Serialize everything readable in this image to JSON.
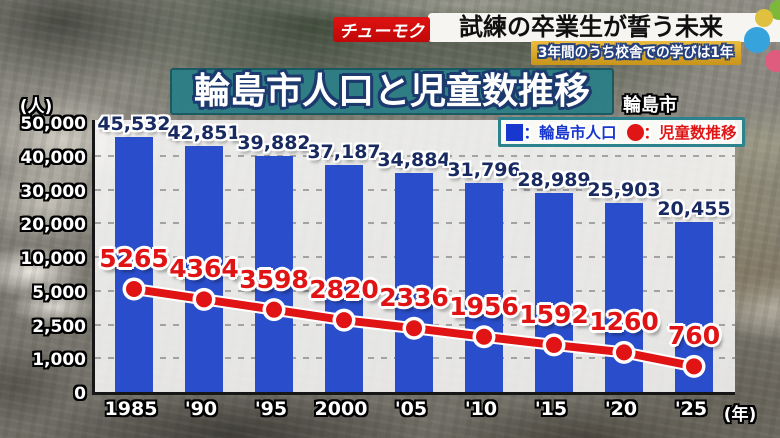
{
  "header": {
    "badge": "チューモク",
    "headline": "試練の卒業生が誓う未来",
    "subheadline": "3年間のうち校舎での学びは1年"
  },
  "title": "輪島市人口と児童数推移",
  "location_label": "輪島市",
  "legend": {
    "population_label": "：輪島市人口",
    "children_label": "：児童数推移"
  },
  "colors": {
    "bar": "#2a4ecb",
    "line": "#e01414",
    "legend_border": "#2c828d",
    "title_bg": "#2b7e86",
    "badge_bg": "#d20b0b",
    "subheadline_bg": "#d9a52c"
  },
  "chart_data": {
    "type": "bar+line",
    "title": "輪島市人口と児童数推移",
    "categories": [
      "1985",
      "'90",
      "'95",
      "2000",
      "'05",
      "'10",
      "'15",
      "'20",
      "'25"
    ],
    "series": [
      {
        "name": "輪島市人口",
        "type": "bar",
        "values": [
          45532,
          42851,
          39882,
          37187,
          34884,
          31796,
          28989,
          25903,
          20455
        ]
      },
      {
        "name": "児童数推移",
        "type": "line",
        "values": [
          5265,
          4364,
          3598,
          2820,
          2336,
          1956,
          1592,
          1260,
          760
        ]
      }
    ],
    "y_ticks": [
      "50,000",
      "40,000",
      "30,000",
      "20,000",
      "10,000",
      "5,000",
      "2,500",
      "1,000",
      "0"
    ],
    "y_tick_values": [
      50000,
      40000,
      30000,
      20000,
      10000,
      5000,
      2500,
      1000,
      0
    ],
    "y_axis_unit": "(人)",
    "x_axis_unit": "(年)",
    "scale": "piecewise-linear-equal-tick-spacing",
    "grid": "dashed-horizontal",
    "legend_position": "top-right"
  }
}
